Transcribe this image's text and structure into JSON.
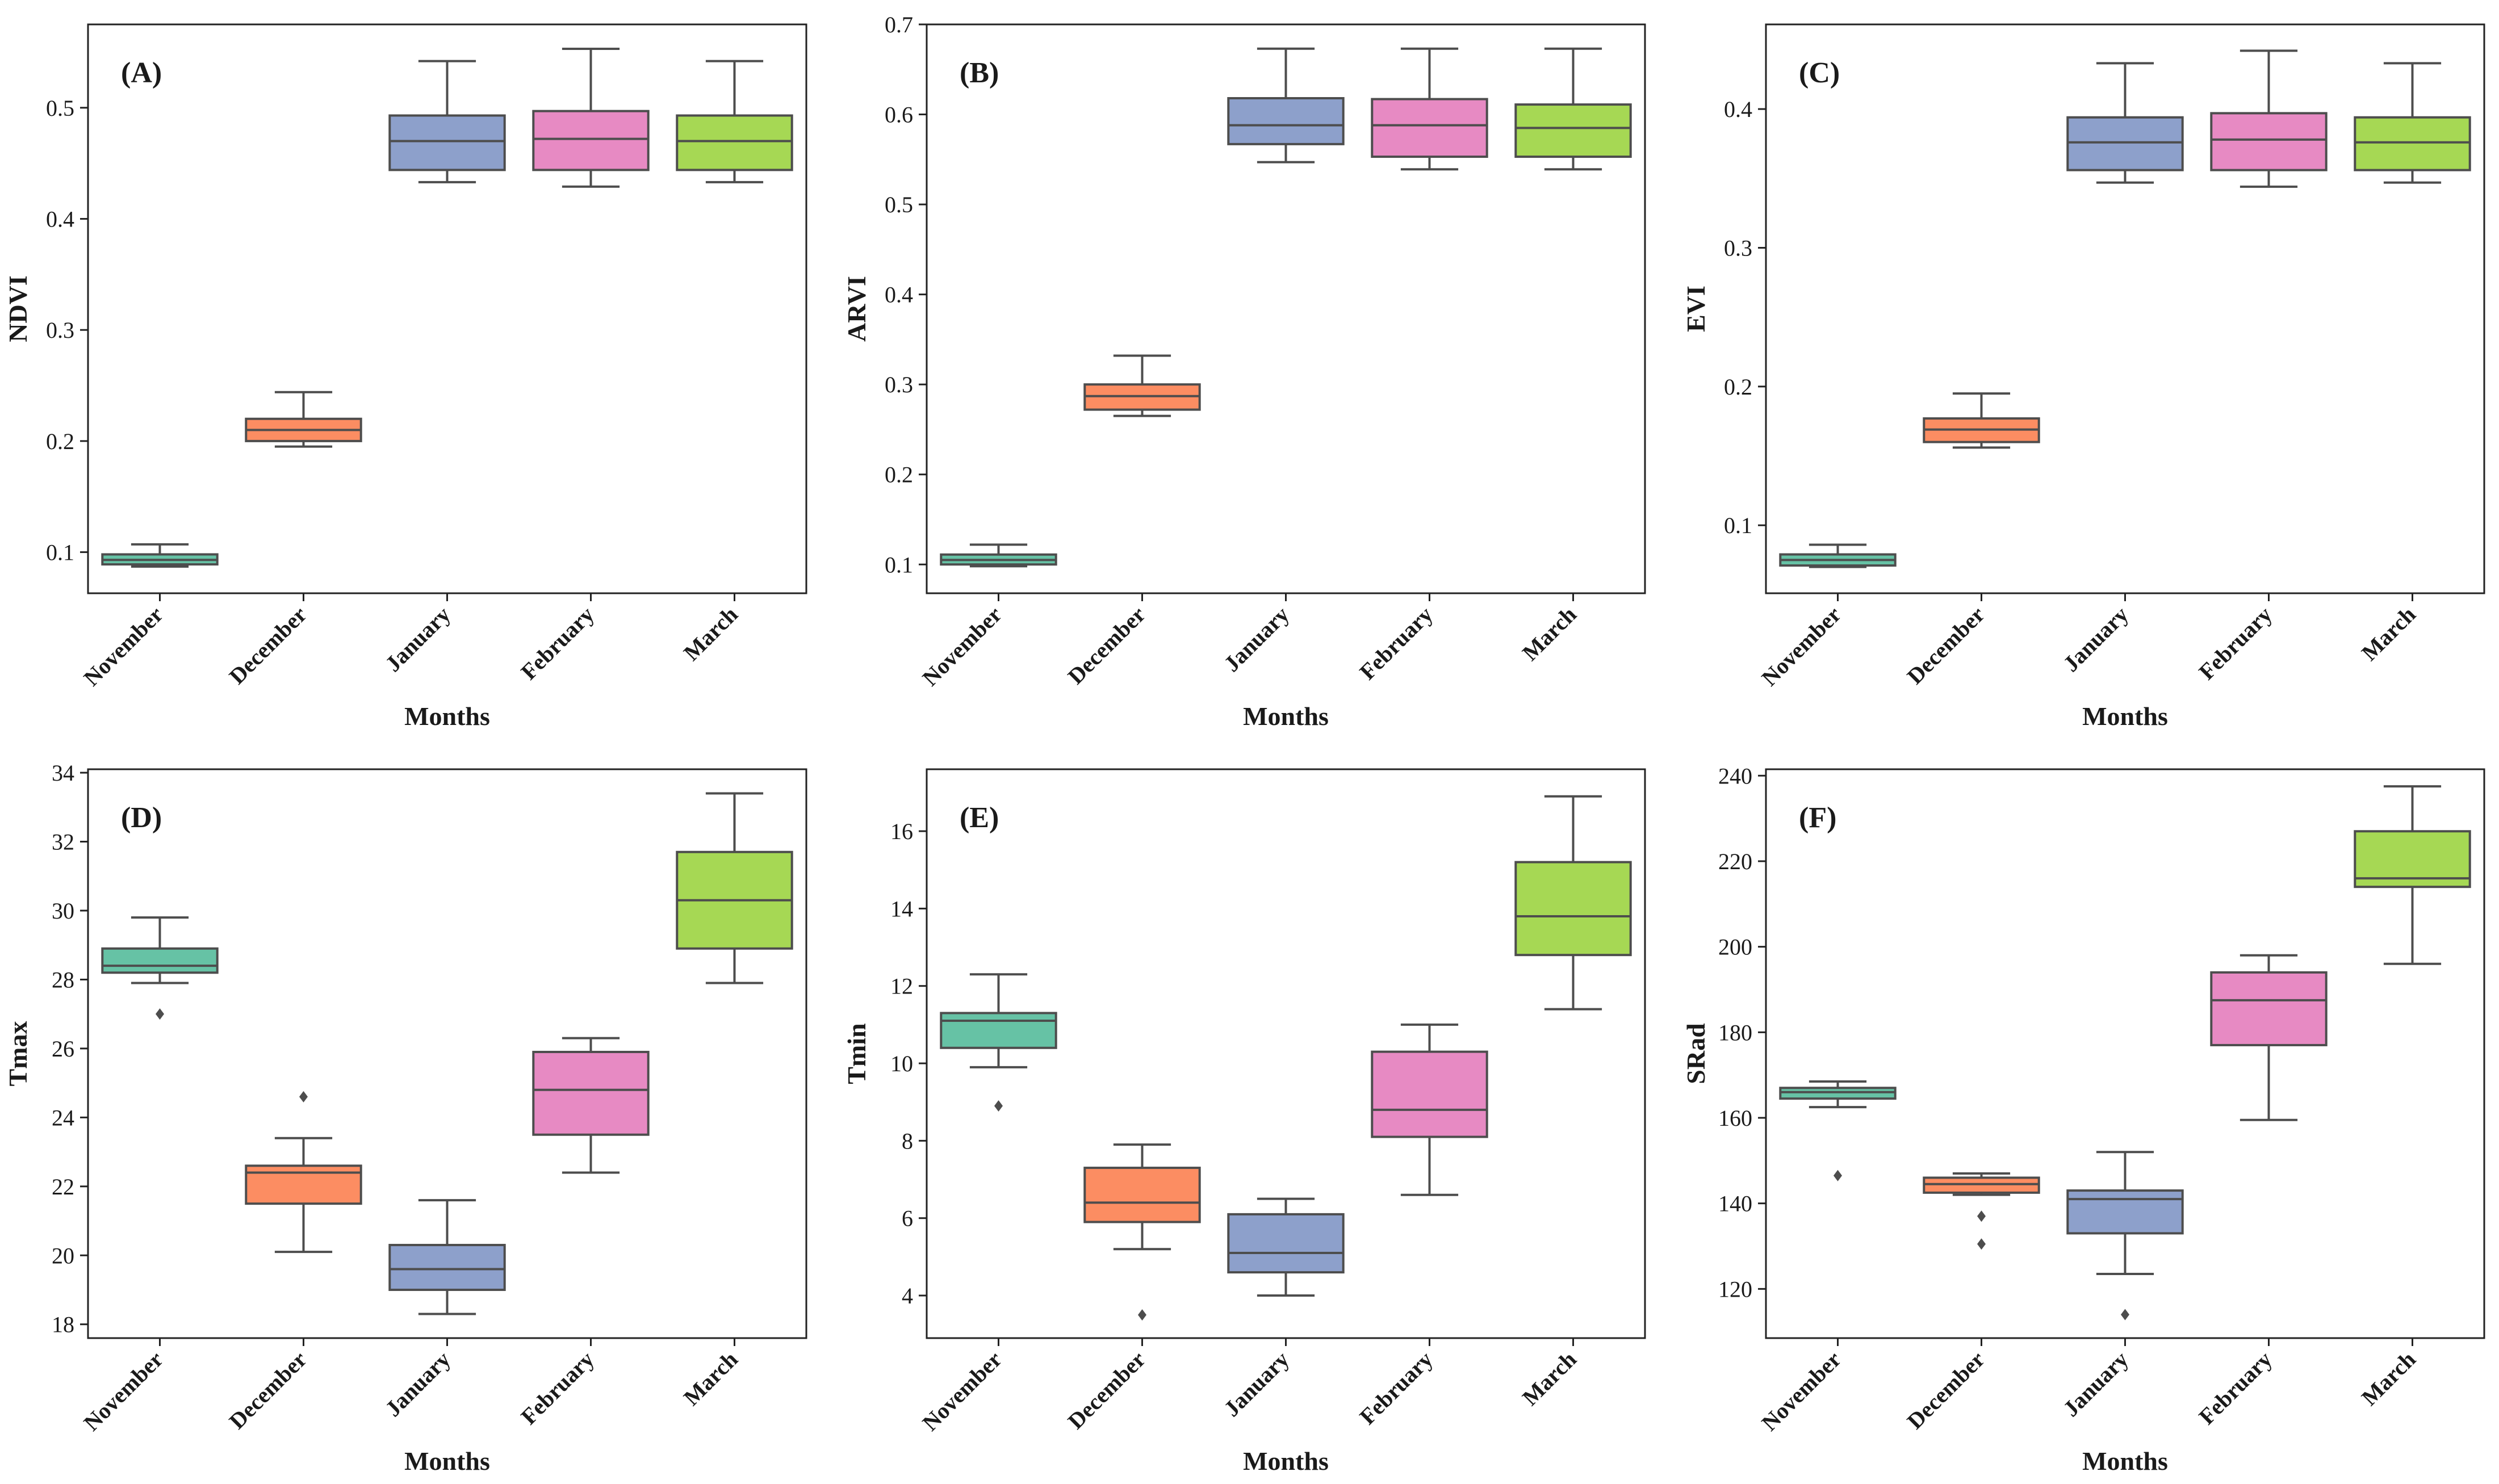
{
  "figure": {
    "months": [
      "November",
      "December",
      "January",
      "February",
      "March"
    ],
    "colors": [
      "#66c2a5",
      "#fc8d62",
      "#8da0cb",
      "#e78ac3",
      "#a6d854"
    ],
    "line_color": "#4d4d4d"
  },
  "chart_data": [
    {
      "type": "box",
      "panel_label": "(A)",
      "xlabel": "Months",
      "ylabel": "NDVI",
      "categories": [
        "November",
        "December",
        "January",
        "February",
        "March"
      ],
      "ylim": [
        0.063,
        0.575
      ],
      "yticks": [
        0.1,
        0.2,
        0.3,
        0.4,
        0.5
      ],
      "ytick_labels": [
        "0.1",
        "0.2",
        "0.3",
        "0.4",
        "0.5"
      ],
      "boxes": [
        {
          "whislo": 0.087,
          "q1": 0.089,
          "med": 0.093,
          "q3": 0.098,
          "whishi": 0.107,
          "fliers": []
        },
        {
          "whislo": 0.195,
          "q1": 0.2,
          "med": 0.21,
          "q3": 0.22,
          "whishi": 0.244,
          "fliers": []
        },
        {
          "whislo": 0.433,
          "q1": 0.444,
          "med": 0.47,
          "q3": 0.493,
          "whishi": 0.542,
          "fliers": []
        },
        {
          "whislo": 0.429,
          "q1": 0.444,
          "med": 0.472,
          "q3": 0.497,
          "whishi": 0.553,
          "fliers": []
        },
        {
          "whislo": 0.433,
          "q1": 0.444,
          "med": 0.47,
          "q3": 0.493,
          "whishi": 0.542,
          "fliers": []
        }
      ]
    },
    {
      "type": "box",
      "panel_label": "(B)",
      "xlabel": "Months",
      "ylabel": "ARVI",
      "categories": [
        "November",
        "December",
        "January",
        "February",
        "March"
      ],
      "ylim": [
        0.068,
        0.7
      ],
      "yticks": [
        0.1,
        0.2,
        0.3,
        0.4,
        0.5,
        0.6,
        0.7
      ],
      "ytick_labels": [
        "0.1",
        "0.2",
        "0.3",
        "0.4",
        "0.5",
        "0.6",
        "0.7"
      ],
      "boxes": [
        {
          "whislo": 0.098,
          "q1": 0.1,
          "med": 0.105,
          "q3": 0.111,
          "whishi": 0.122,
          "fliers": []
        },
        {
          "whislo": 0.265,
          "q1": 0.272,
          "med": 0.287,
          "q3": 0.3,
          "whishi": 0.332,
          "fliers": []
        },
        {
          "whislo": 0.547,
          "q1": 0.567,
          "med": 0.588,
          "q3": 0.618,
          "whishi": 0.673,
          "fliers": []
        },
        {
          "whislo": 0.539,
          "q1": 0.553,
          "med": 0.588,
          "q3": 0.617,
          "whishi": 0.673,
          "fliers": []
        },
        {
          "whislo": 0.539,
          "q1": 0.553,
          "med": 0.585,
          "q3": 0.611,
          "whishi": 0.673,
          "fliers": []
        }
      ]
    },
    {
      "type": "box",
      "panel_label": "(C)",
      "xlabel": "Months",
      "ylabel": "EVI",
      "categories": [
        "November",
        "December",
        "January",
        "February",
        "March"
      ],
      "ylim": [
        0.051,
        0.461
      ],
      "yticks": [
        0.1,
        0.2,
        0.3,
        0.4
      ],
      "ytick_labels": [
        "0.1",
        "0.2",
        "0.3",
        "0.4"
      ],
      "boxes": [
        {
          "whislo": 0.07,
          "q1": 0.071,
          "med": 0.075,
          "q3": 0.079,
          "whishi": 0.086,
          "fliers": []
        },
        {
          "whislo": 0.156,
          "q1": 0.16,
          "med": 0.169,
          "q3": 0.177,
          "whishi": 0.195,
          "fliers": []
        },
        {
          "whislo": 0.347,
          "q1": 0.356,
          "med": 0.376,
          "q3": 0.394,
          "whishi": 0.433,
          "fliers": []
        },
        {
          "whislo": 0.344,
          "q1": 0.356,
          "med": 0.378,
          "q3": 0.397,
          "whishi": 0.442,
          "fliers": []
        },
        {
          "whislo": 0.347,
          "q1": 0.356,
          "med": 0.376,
          "q3": 0.394,
          "whishi": 0.433,
          "fliers": []
        }
      ]
    },
    {
      "type": "box",
      "panel_label": "(D)",
      "xlabel": "Months",
      "ylabel": "Tmax",
      "categories": [
        "November",
        "December",
        "January",
        "February",
        "March"
      ],
      "ylim": [
        17.6,
        34.1
      ],
      "yticks": [
        18,
        20,
        22,
        24,
        26,
        28,
        30,
        32,
        34
      ],
      "ytick_labels": [
        "18",
        "20",
        "22",
        "24",
        "26",
        "28",
        "30",
        "32",
        "34"
      ],
      "boxes": [
        {
          "whislo": 27.9,
          "q1": 28.2,
          "med": 28.4,
          "q3": 28.9,
          "whishi": 29.8,
          "fliers": [
            27.0
          ]
        },
        {
          "whislo": 20.1,
          "q1": 21.5,
          "med": 22.4,
          "q3": 22.6,
          "whishi": 23.4,
          "fliers": [
            24.6
          ]
        },
        {
          "whislo": 18.3,
          "q1": 19.0,
          "med": 19.6,
          "q3": 20.3,
          "whishi": 21.6,
          "fliers": []
        },
        {
          "whislo": 22.4,
          "q1": 23.5,
          "med": 24.8,
          "q3": 25.9,
          "whishi": 26.3,
          "fliers": []
        },
        {
          "whislo": 27.9,
          "q1": 28.9,
          "med": 30.3,
          "q3": 31.7,
          "whishi": 33.4,
          "fliers": []
        }
      ]
    },
    {
      "type": "box",
      "panel_label": "(E)",
      "xlabel": "Months",
      "ylabel": "Tmin",
      "categories": [
        "November",
        "December",
        "January",
        "February",
        "March"
      ],
      "ylim": [
        2.9,
        17.6
      ],
      "yticks": [
        4,
        6,
        8,
        10,
        12,
        14,
        16
      ],
      "ytick_labels": [
        "4",
        "6",
        "8",
        "10",
        "12",
        "14",
        "16"
      ],
      "boxes": [
        {
          "whislo": 9.9,
          "q1": 10.4,
          "med": 11.1,
          "q3": 11.3,
          "whishi": 12.3,
          "fliers": [
            8.9
          ]
        },
        {
          "whislo": 5.2,
          "q1": 5.9,
          "med": 6.4,
          "q3": 7.3,
          "whishi": 7.9,
          "fliers": [
            3.5
          ]
        },
        {
          "whislo": 4.0,
          "q1": 4.6,
          "med": 5.1,
          "q3": 6.1,
          "whishi": 6.5,
          "fliers": []
        },
        {
          "whislo": 6.6,
          "q1": 8.1,
          "med": 8.8,
          "q3": 10.3,
          "whishi": 11.0,
          "fliers": []
        },
        {
          "whislo": 11.4,
          "q1": 12.8,
          "med": 13.8,
          "q3": 15.2,
          "whishi": 16.9,
          "fliers": []
        }
      ]
    },
    {
      "type": "box",
      "panel_label": "(F)",
      "xlabel": "Months",
      "ylabel": "SRad",
      "categories": [
        "November",
        "December",
        "January",
        "February",
        "March"
      ],
      "ylim": [
        108.5,
        241.5
      ],
      "yticks": [
        120,
        140,
        160,
        180,
        200,
        220,
        240
      ],
      "ytick_labels": [
        "120",
        "140",
        "160",
        "180",
        "200",
        "220",
        "240"
      ],
      "boxes": [
        {
          "whislo": 162.5,
          "q1": 164.5,
          "med": 166.0,
          "q3": 167.0,
          "whishi": 168.5,
          "fliers": [
            146.5
          ]
        },
        {
          "whislo": 142.0,
          "q1": 142.5,
          "med": 144.5,
          "q3": 146.0,
          "whishi": 147.0,
          "fliers": [
            137.0,
            130.5
          ]
        },
        {
          "whislo": 123.5,
          "q1": 133.0,
          "med": 141.0,
          "q3": 143.0,
          "whishi": 152.0,
          "fliers": [
            114.0
          ]
        },
        {
          "whislo": 159.5,
          "q1": 177.0,
          "med": 187.5,
          "q3": 194.0,
          "whishi": 198.0,
          "fliers": []
        },
        {
          "whislo": 196.0,
          "q1": 214.0,
          "med": 216.0,
          "q3": 227.0,
          "whishi": 237.5,
          "fliers": []
        }
      ]
    }
  ]
}
